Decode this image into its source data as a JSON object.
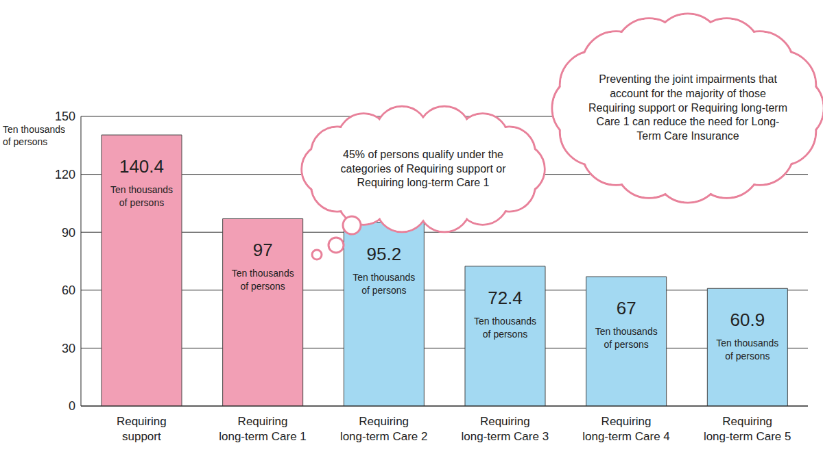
{
  "chart_data": {
    "type": "bar",
    "y_label": "Ten thousands of persons",
    "categories": [
      "Requiring support",
      "Requiring long-term Care 1",
      "Requiring long-term Care 2",
      "Requiring long-term Care 3",
      "Requiring long-term Care 4",
      "Requiring long-term Care 5"
    ],
    "values": [
      140.4,
      97,
      95.2,
      72.4,
      67,
      60.9
    ],
    "value_labels": [
      "140.4 Ten thousands of persons",
      "97 Ten thousands of persons",
      "95.2 Ten thousands of persons",
      "72.4 Ten thousands of persons",
      "67 Ten thousands of persons",
      "60.9 Ten thousands of persons"
    ],
    "colors": [
      "#f29fb5",
      "#f29fb5",
      "#a3d9f2",
      "#a3d9f2",
      "#a3d9f2",
      "#a3d9f2"
    ],
    "ylim": [
      0,
      150
    ],
    "yticks": [
      0,
      30,
      60,
      90,
      120,
      150
    ],
    "grid": true,
    "data_labels": true,
    "annotations": [
      "45% of persons qualify under the categories of Requiring support or Requiring long-term Care 1",
      "Preventing the joint impairments that account for the majority of those Requiring support or Requiring long-term Care 1 can reduce the need for Long-Term Care Insurance"
    ]
  }
}
